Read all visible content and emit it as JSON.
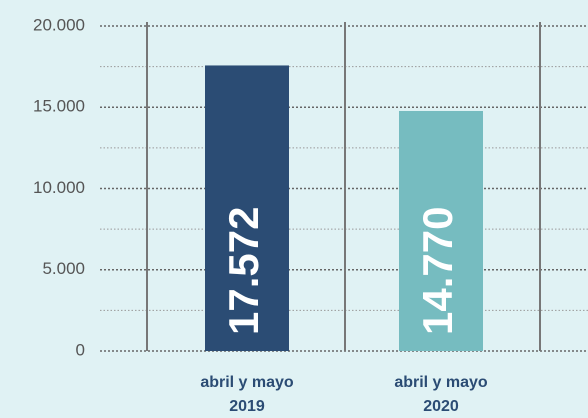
{
  "chart_data": {
    "type": "bar",
    "categories": [
      [
        "abril y mayo",
        "2019"
      ],
      [
        "abril y mayo",
        "2020"
      ]
    ],
    "values": [
      17572,
      14770
    ],
    "value_labels": [
      "17.572",
      "14.770"
    ],
    "colors": [
      "#2b4c74",
      "#76bcc0"
    ],
    "ylim": [
      0,
      20000
    ],
    "yticks": [
      0,
      {
        "value": 5000,
        "label": "5.000"
      },
      {
        "value": 10000,
        "label": "10.000"
      },
      {
        "value": 15000,
        "label": "15.000"
      },
      {
        "value": 20000,
        "label": "20.000"
      }
    ],
    "grid": true,
    "minor_grid": true
  }
}
